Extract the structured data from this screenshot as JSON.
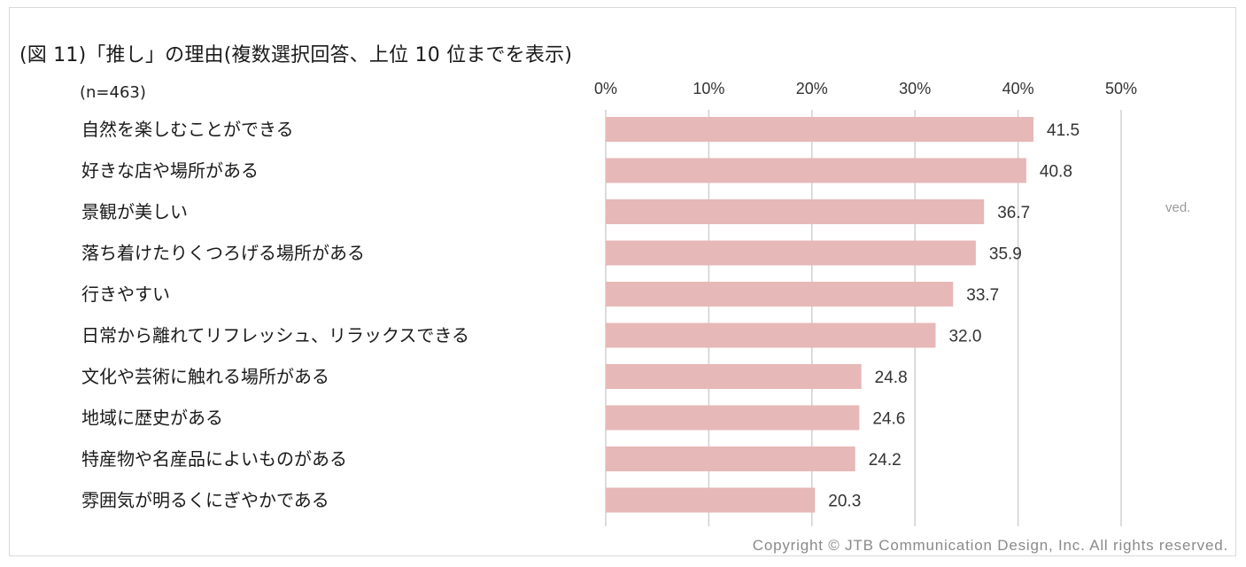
{
  "title": "(図 11)「推し」の理由(複数選択回答、上位 10 位までを表示)",
  "sample_size": "(n=463)",
  "copyright": "Copyright © JTB Communication Design, Inc. All rights reserved.",
  "ghost_text": "ved.",
  "chart_data": {
    "type": "bar",
    "orientation": "horizontal",
    "categories": [
      "自然を楽しむことができる",
      "好きな店や場所がある",
      "景観が美しい",
      "落ち着けたりくつろげる場所がある",
      "行きやすい",
      "日常から離れてリフレッシュ、リラックスできる",
      "文化や芸術に触れる場所がある",
      "地域に歴史がある",
      "特産物や名産品によいものがある",
      "雰囲気が明るくにぎやかである"
    ],
    "values": [
      41.5,
      40.8,
      36.7,
      35.9,
      33.7,
      32.0,
      24.8,
      24.6,
      24.2,
      20.3
    ],
    "value_labels": [
      "41.5",
      "40.8",
      "36.7",
      "35.9",
      "33.7",
      "32.0",
      "24.8",
      "24.6",
      "24.2",
      "20.3"
    ],
    "xlim": [
      0,
      50
    ],
    "ticks": [
      0,
      10,
      20,
      30,
      40,
      50
    ],
    "tick_labels": [
      "0%",
      "10%",
      "20%",
      "30%",
      "40%",
      "50%"
    ],
    "axis_position": "top",
    "grid": true,
    "bar_color": "#e6b8b7",
    "grid_color": "#d0d0d0"
  }
}
